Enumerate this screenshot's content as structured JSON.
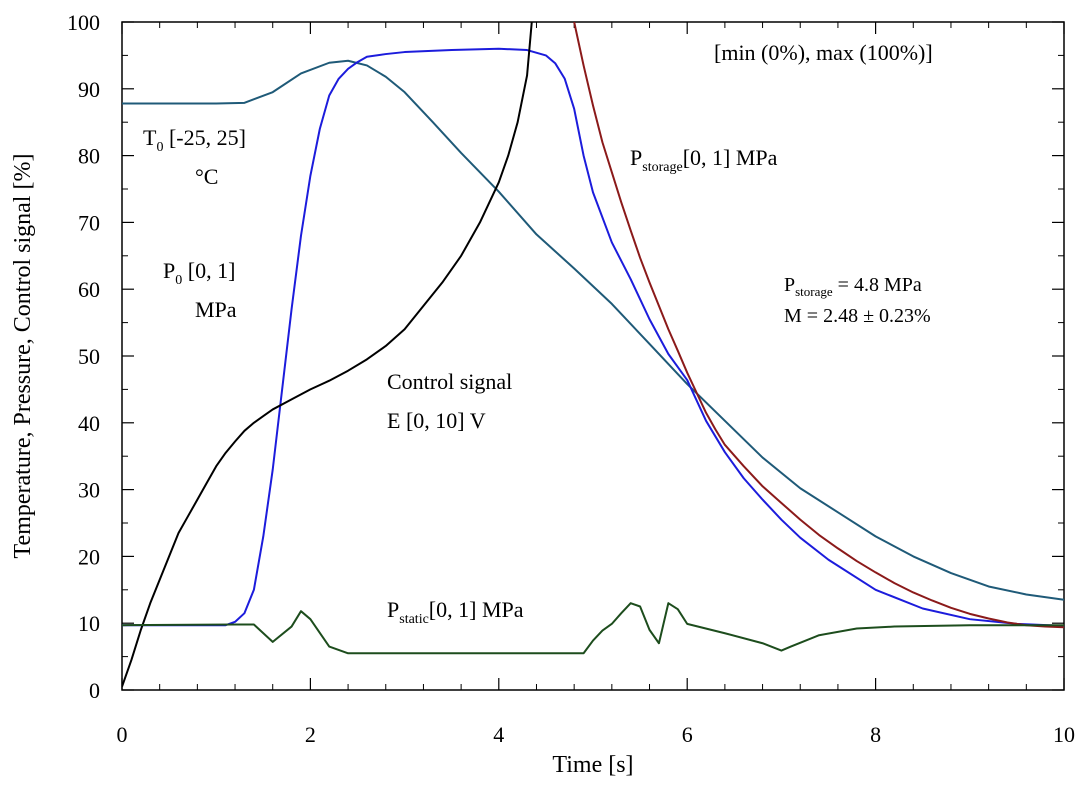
{
  "chart_data": {
    "type": "line",
    "title": "",
    "xlabel": "Time [s]",
    "ylabel": "Temperature, Pressure, Control signal [%]",
    "xlim": [
      0,
      10
    ],
    "ylim": [
      0,
      100
    ],
    "x_ticks": [
      "0",
      "2",
      "4",
      "6",
      "8",
      "10"
    ],
    "y_ticks": [
      "0",
      "10",
      "20",
      "30",
      "40",
      "50",
      "60",
      "70",
      "80",
      "90",
      "100"
    ],
    "grid": false,
    "legend": "none",
    "series": [
      {
        "name": "T0 [-25, 25] °C",
        "color": "#1f5a78",
        "x": [
          0,
          1.0,
          1.3,
          1.6,
          1.9,
          2.2,
          2.4,
          2.6,
          2.8,
          3.0,
          3.3,
          3.6,
          4.0,
          4.4,
          4.8,
          5.2,
          5.6,
          6.0,
          6.4,
          6.8,
          7.2,
          7.6,
          8.0,
          8.4,
          8.8,
          9.2,
          9.6,
          10.0
        ],
        "y": [
          87.8,
          87.8,
          87.9,
          89.5,
          92.3,
          93.9,
          94.2,
          93.5,
          91.8,
          89.5,
          85.0,
          80.4,
          74.6,
          68.2,
          63.1,
          57.8,
          51.8,
          45.8,
          40.3,
          34.8,
          30.2,
          26.6,
          23.0,
          20.0,
          17.5,
          15.5,
          14.3,
          13.5
        ]
      },
      {
        "name": "P0 [0, 1] MPa",
        "color": "#1c1cdc",
        "x": [
          0,
          1.1,
          1.2,
          1.3,
          1.4,
          1.5,
          1.6,
          1.7,
          1.8,
          1.9,
          2.0,
          2.1,
          2.2,
          2.3,
          2.4,
          2.5,
          2.6,
          2.8,
          3.0,
          3.5,
          4.0,
          4.3,
          4.5,
          4.6,
          4.7,
          4.8,
          4.9,
          5.0,
          5.2,
          5.4,
          5.6,
          5.8,
          6.0,
          6.2,
          6.4,
          6.6,
          6.8,
          7.0,
          7.2,
          7.5,
          8.0,
          8.5,
          9.0,
          9.5,
          10.0
        ],
        "y": [
          9.7,
          9.7,
          10.2,
          11.5,
          15,
          23,
          33,
          45,
          57,
          68,
          77,
          84,
          89,
          91.5,
          93,
          94,
          94.8,
          95.2,
          95.5,
          95.8,
          96,
          95.8,
          95,
          93.8,
          91.5,
          87,
          80,
          74.5,
          67,
          61.5,
          55.5,
          50.3,
          46.4,
          40.3,
          35.6,
          31.7,
          28.5,
          25.5,
          22.8,
          19.5,
          15.0,
          12.2,
          10.6,
          9.9,
          9.6
        ]
      },
      {
        "name": "Pstorage[0, 1] MPa",
        "color": "#8b1a1a",
        "x": [
          4.8,
          4.9,
          5.0,
          5.1,
          5.2,
          5.3,
          5.4,
          5.5,
          5.6,
          5.7,
          5.8,
          5.9,
          6.0,
          6.1,
          6.2,
          6.3,
          6.4,
          6.6,
          6.8,
          7.0,
          7.2,
          7.4,
          7.6,
          7.8,
          8.0,
          8.2,
          8.4,
          8.6,
          8.8,
          9.0,
          9.2,
          9.4,
          9.6,
          9.8,
          10.0
        ],
        "y": [
          100,
          93.5,
          87.5,
          82.0,
          77.5,
          73.0,
          68.8,
          64.7,
          61.0,
          57.5,
          54.0,
          50.8,
          47.5,
          44.5,
          41.5,
          39.0,
          36.7,
          33.5,
          30.5,
          28.0,
          25.5,
          23.2,
          21.2,
          19.3,
          17.6,
          16.0,
          14.6,
          13.4,
          12.3,
          11.4,
          10.7,
          10.1,
          9.7,
          9.5,
          9.4
        ]
      },
      {
        "name": "Control signal E [0, 10] V",
        "color": "#000000",
        "x": [
          0,
          0.1,
          0.2,
          0.3,
          0.4,
          0.5,
          0.6,
          0.7,
          0.8,
          0.9,
          1.0,
          1.1,
          1.2,
          1.3,
          1.4,
          1.5,
          1.6,
          1.8,
          2.0,
          2.2,
          2.4,
          2.6,
          2.8,
          3.0,
          3.2,
          3.4,
          3.6,
          3.8,
          4.0,
          4.1,
          4.2,
          4.3,
          4.35
        ],
        "y": [
          0.5,
          4.5,
          9,
          13,
          16.5,
          20,
          23.5,
          26,
          28.5,
          31,
          33.5,
          35.5,
          37.2,
          38.8,
          40.0,
          41.0,
          42.0,
          43.5,
          45.0,
          46.3,
          47.8,
          49.5,
          51.5,
          54.0,
          57.5,
          61.0,
          65.0,
          70.0,
          76.0,
          80.0,
          85.0,
          92.0,
          100
        ]
      },
      {
        "name": "Pstatic[0, 1] MPa",
        "color": "#1d4d1d",
        "x": [
          0,
          1.2,
          1.4,
          1.6,
          1.8,
          1.9,
          2.0,
          2.2,
          2.4,
          3.0,
          3.5,
          4.0,
          4.5,
          4.9,
          5.0,
          5.1,
          5.2,
          5.3,
          5.4,
          5.5,
          5.6,
          5.7,
          5.8,
          5.9,
          6.0,
          6.4,
          6.8,
          7.0,
          7.1,
          7.4,
          7.8,
          8.2,
          8.6,
          9.0,
          9.5,
          10.0
        ],
        "y": [
          9.7,
          9.8,
          9.8,
          7.2,
          9.5,
          11.8,
          10.6,
          6.5,
          5.5,
          5.5,
          5.5,
          5.5,
          5.5,
          5.5,
          7.4,
          8.9,
          9.9,
          11.5,
          13.0,
          12.5,
          9.0,
          7.0,
          13.0,
          12.1,
          9.9,
          8.5,
          7.0,
          5.9,
          6.5,
          8.2,
          9.2,
          9.5,
          9.6,
          9.7,
          9.7,
          9.7
        ]
      }
    ],
    "annotations": {
      "range_note": "[min (0%), max (100%)]",
      "t0_main": "T",
      "t0_sub": "0",
      "t0_rest": " [-25, 25]",
      "t0_unit": "°C",
      "p0_main": "P",
      "p0_sub": "0",
      "p0_rest": " [0, 1]",
      "p0_unit": "MPa",
      "pstorage_main": "P",
      "pstorage_sub": "storage",
      "pstorage_rest": "[0, 1] MPa",
      "control_line1": "Control signal",
      "control_line2": "E [0, 10] V",
      "pstatic_main": "P",
      "pstatic_sub": "static",
      "pstatic_rest": "[0, 1] MPa",
      "value_main": "P",
      "value_sub": "storage",
      "value_rest": " = 4.8 MPa",
      "m_value": "M = 2.48 ± 0.23%"
    }
  }
}
